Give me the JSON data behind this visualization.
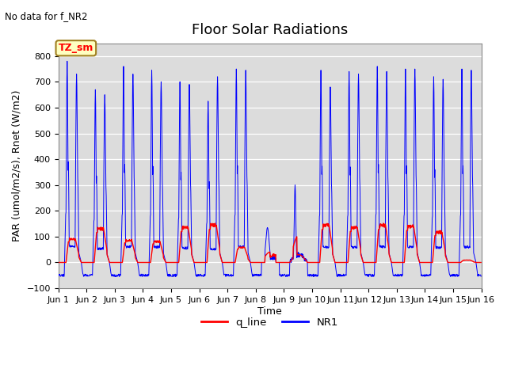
{
  "title": "Floor Solar Radiations",
  "top_left_text": "No data for f_NR2",
  "xlabel": "Time",
  "ylabel": "PAR (umol/m2/s), Rnet (W/m2)",
  "ylim": [
    -100,
    850
  ],
  "yticks": [
    -100,
    0,
    100,
    200,
    300,
    400,
    500,
    600,
    700,
    800
  ],
  "xtick_labels": [
    "Jun 1",
    "Jun 2",
    "Jun 3",
    "Jun 4",
    "Jun 5",
    "Jun 6",
    "Jun 7",
    "Jun 8",
    "Jun 9",
    "Jun 10",
    "Jun 11",
    "Jun 12",
    "Jun 13",
    "Jun 14",
    "Jun 15",
    "Jun 16"
  ],
  "box_label": "TZ_sm",
  "box_facecolor": "#FFFFC0",
  "box_edgecolor": "#A08020",
  "background_color": "#DCDCDC",
  "grid_color": "white",
  "title_fontsize": 13,
  "label_fontsize": 9,
  "tick_fontsize": 8,
  "nr1_color": "blue",
  "qline_color": "red",
  "days": 15,
  "dt_hours": 0.25,
  "nr1_peaks": [
    780,
    670,
    760,
    745,
    700,
    625,
    750,
    135,
    300,
    745,
    740,
    760,
    750,
    720,
    750
  ],
  "nr1_peaks2": [
    730,
    650,
    730,
    700,
    690,
    720,
    745,
    0,
    0,
    680,
    730,
    740,
    750,
    710,
    745
  ],
  "q_peaks": [
    100,
    145,
    95,
    90,
    150,
    160,
    65,
    45,
    105,
    160,
    150,
    160,
    155,
    130,
    10
  ],
  "night_neg": -50
}
